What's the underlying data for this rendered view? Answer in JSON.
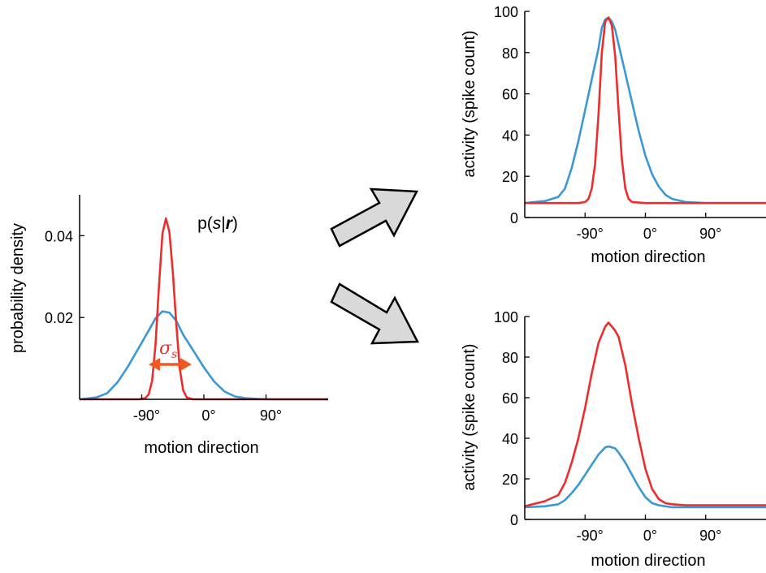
{
  "colors": {
    "blue": "#3a99d4",
    "red": "#ec2d2d",
    "arrow_fill": "#d9d9d9",
    "sigma_arrow": "#f05a22"
  },
  "posterior": {
    "annotation": {
      "p": "p(",
      "s": "s",
      "bar": "|",
      "r": "r",
      "close": ")"
    },
    "sigma_label": {
      "symbol": "σ",
      "sub": "s"
    }
  },
  "chart_data": [
    {
      "type": "line",
      "id": "posterior",
      "title": "",
      "xlabel": "motion direction",
      "ylabel": "probability density",
      "xlim": [
        -180,
        180
      ],
      "ylim": [
        0,
        0.05
      ],
      "x_ticks": [
        -90,
        0,
        90
      ],
      "x_tick_labels": [
        "-90°",
        "0°",
        "90°"
      ],
      "y_ticks": [
        0.02,
        0.04
      ],
      "y_tick_labels": [
        "0.02",
        "0.04"
      ],
      "series": [
        {
          "color": "#3a99d4",
          "x": [
            -180,
            -155,
            -140,
            -125,
            -110,
            -95,
            -80,
            -70,
            -60,
            -50,
            -40,
            -30,
            -15,
            0,
            15,
            30,
            45,
            60,
            80,
            100,
            180
          ],
          "y": [
            0,
            0.0005,
            0.0015,
            0.0042,
            0.008,
            0.0124,
            0.0168,
            0.0198,
            0.0215,
            0.0212,
            0.0192,
            0.0158,
            0.0118,
            0.0078,
            0.0043,
            0.0019,
            0.0007,
            0.0003,
            0.0001,
            0,
            0
          ]
        },
        {
          "color": "#ec2d2d",
          "x": [
            -180,
            -95,
            -90,
            -85,
            -80,
            -75,
            -70,
            -65,
            -60,
            -55,
            -50,
            -45,
            -40,
            -35,
            -30,
            -25,
            -20,
            -15,
            0,
            180
          ],
          "y": [
            0,
            0,
            0.0001,
            0.0003,
            0.0012,
            0.0045,
            0.0135,
            0.028,
            0.0405,
            0.0442,
            0.041,
            0.031,
            0.0185,
            0.0075,
            0.0022,
            0.0005,
            0.0002,
            0,
            0,
            0
          ]
        }
      ]
    },
    {
      "type": "line",
      "id": "tuning-top",
      "title": "",
      "xlabel": "motion direction",
      "ylabel": "activity (spike count)",
      "xlim": [
        -180,
        180
      ],
      "ylim": [
        0,
        100
      ],
      "x_ticks": [
        -90,
        0,
        90
      ],
      "x_tick_labels": [
        "-90°",
        "0°",
        "90°"
      ],
      "y_ticks": [
        0,
        20,
        40,
        60,
        80,
        100
      ],
      "y_tick_labels": [
        "0",
        "20",
        "40",
        "60",
        "80",
        "100"
      ],
      "series": [
        {
          "color": "#3a99d4",
          "x": [
            -180,
            -150,
            -130,
            -120,
            -110,
            -100,
            -90,
            -80,
            -70,
            -65,
            -60,
            -55,
            -50,
            -45,
            -40,
            -30,
            -20,
            -10,
            0,
            10,
            20,
            30,
            40,
            60,
            90,
            180
          ],
          "y": [
            7,
            8,
            10,
            14,
            24,
            37,
            52,
            67,
            82,
            92,
            96,
            97,
            95,
            91,
            84,
            70,
            56,
            42,
            30,
            21,
            15,
            11,
            9,
            7.5,
            7,
            7
          ]
        },
        {
          "color": "#ec2d2d",
          "x": [
            -180,
            -100,
            -90,
            -85,
            -80,
            -75,
            -70,
            -65,
            -60,
            -55,
            -50,
            -45,
            -40,
            -35,
            -30,
            -25,
            -20,
            0,
            180
          ],
          "y": [
            7,
            7,
            7.5,
            9,
            14,
            26,
            50,
            80,
            95,
            97,
            93,
            78,
            52,
            28,
            14,
            9,
            7.5,
            7,
            7
          ]
        }
      ]
    },
    {
      "type": "line",
      "id": "tuning-bottom",
      "title": "",
      "xlabel": "motion direction",
      "ylabel": "activity (spike count)",
      "xlim": [
        -180,
        180
      ],
      "ylim": [
        0,
        100
      ],
      "x_ticks": [
        -90,
        0,
        90
      ],
      "x_tick_labels": [
        "-90°",
        "0°",
        "90°"
      ],
      "y_ticks": [
        0,
        20,
        40,
        60,
        80,
        100
      ],
      "y_tick_labels": [
        "0",
        "20",
        "40",
        "60",
        "80",
        "100"
      ],
      "series": [
        {
          "color": "#3a99d4",
          "x": [
            -180,
            -150,
            -130,
            -120,
            -110,
            -100,
            -90,
            -80,
            -70,
            -60,
            -55,
            -50,
            -45,
            -40,
            -30,
            -20,
            -10,
            0,
            10,
            20,
            30,
            40,
            60,
            90,
            180
          ],
          "y": [
            6,
            6.5,
            7.5,
            9.5,
            13,
            17,
            22,
            27,
            32,
            35.5,
            36,
            35.5,
            35,
            33,
            28,
            22,
            16,
            11,
            8,
            7,
            6.5,
            6,
            6,
            6,
            6
          ]
        },
        {
          "color": "#ec2d2d",
          "x": [
            -180,
            -150,
            -130,
            -120,
            -110,
            -100,
            -90,
            -80,
            -70,
            -60,
            -55,
            -50,
            -45,
            -40,
            -30,
            -20,
            -10,
            0,
            10,
            20,
            30,
            40,
            60,
            90,
            180
          ],
          "y": [
            6.5,
            9,
            12,
            18,
            28,
            40,
            55,
            72,
            87,
            95,
            97,
            95,
            93,
            90,
            76,
            57,
            40,
            25,
            15,
            10,
            8,
            7.5,
            7,
            7,
            7
          ]
        }
      ]
    }
  ]
}
